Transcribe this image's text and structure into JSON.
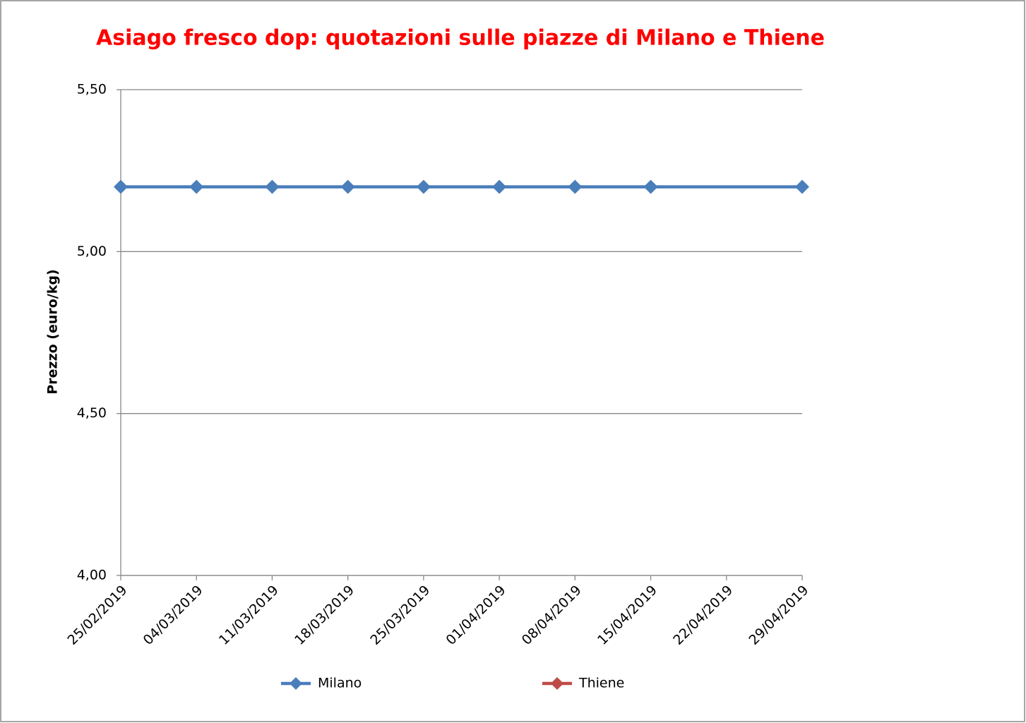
{
  "chart_data": {
    "type": "line",
    "title": "Asiago fresco dop: quotazioni sulle piazze di Milano e Thiene",
    "y_label": "Prezzo (euro/kg)",
    "x": [
      "25/02/2019",
      "04/03/2019",
      "11/03/2019",
      "18/03/2019",
      "25/03/2019",
      "01/04/2019",
      "08/04/2019",
      "15/04/2019",
      "29/04/2019"
    ],
    "series": [
      {
        "name": "Milano",
        "color": "#4a7ebb",
        "values": [
          5.2,
          5.2,
          5.2,
          5.2,
          5.2,
          5.2,
          5.2,
          5.2,
          5.2
        ]
      },
      {
        "name": "Thiene",
        "color": "#be4b48",
        "values": [
          null,
          null,
          null,
          null,
          null,
          null,
          null,
          null,
          null
        ]
      }
    ],
    "xlim": [
      "25/02/2019",
      "29/04/2019"
    ],
    "xticks": [
      "25/02/2019",
      "04/03/2019",
      "11/03/2019",
      "18/03/2019",
      "25/03/2019",
      "01/04/2019",
      "08/04/2019",
      "15/04/2019",
      "22/04/2019",
      "29/04/2019"
    ],
    "ylim": [
      4,
      5.5
    ],
    "yticks": [
      {
        "value": 4,
        "label": "4,00"
      },
      {
        "value": 4.5,
        "label": "4,50"
      },
      {
        "value": 5,
        "label": "5,00"
      },
      {
        "value": 5.5,
        "label": "5,50"
      }
    ],
    "grid": true,
    "legend": "bottom"
  }
}
